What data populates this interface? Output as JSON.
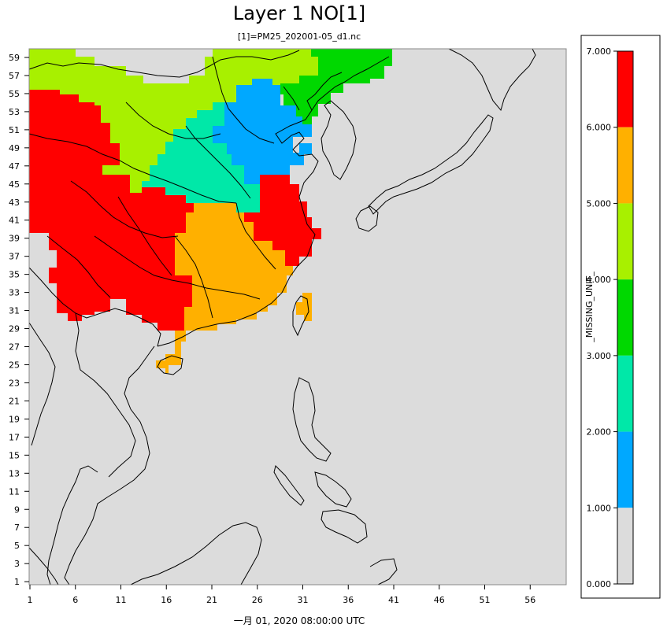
{
  "title": "Layer 1 NO[1]",
  "subtitle": "[1]=PM25_202001-05_d1.nc",
  "footer": "一月 01, 2020 08:00:00 UTC",
  "x_ticks": [
    "1",
    "6",
    "11",
    "16",
    "21",
    "26",
    "31",
    "36",
    "41",
    "46",
    "51",
    "56"
  ],
  "y_ticks": [
    "59",
    "57",
    "55",
    "53",
    "51",
    "49",
    "47",
    "45",
    "43",
    "41",
    "39",
    "37",
    "35",
    "33",
    "31",
    "29",
    "27",
    "25",
    "23",
    "21",
    "19",
    "17",
    "15",
    "13",
    "11",
    "9",
    "7",
    "5",
    "3",
    "1"
  ],
  "legend": {
    "unit_label": "_MISSING_UNIT_",
    "labels": [
      "7.000",
      "6.000",
      "5.000",
      "4.000",
      "3.000",
      "2.000",
      "1.000",
      "0.000"
    ],
    "bins": [
      {
        "color": "#dcdcdc",
        "from": 0,
        "to": 1
      },
      {
        "color": "#00a8ff",
        "from": 1,
        "to": 2
      },
      {
        "color": "#00e8a8",
        "from": 2,
        "to": 3
      },
      {
        "color": "#00d800",
        "from": 3,
        "to": 4
      },
      {
        "color": "#a8f000",
        "from": 4,
        "to": 5
      },
      {
        "color": "#ffb000",
        "from": 5,
        "to": 6
      },
      {
        "color": "#ff0000",
        "from": 6,
        "to": 7
      }
    ]
  },
  "map": {
    "background_color": "#dcdcdc",
    "regions": [
      {
        "name": "north-green",
        "color": "#00d800"
      },
      {
        "name": "north-lime",
        "color": "#a8f000"
      },
      {
        "name": "west-red",
        "color": "#ff0000"
      },
      {
        "name": "east-red",
        "color": "#ff0000"
      },
      {
        "name": "blue",
        "color": "#00a8ff"
      },
      {
        "name": "teal",
        "color": "#00e8a8"
      },
      {
        "name": "orange",
        "color": "#ffb000"
      },
      {
        "name": "taiwan",
        "color": "#ffb000"
      },
      {
        "name": "hainan",
        "color": "#ffb000"
      }
    ]
  }
}
